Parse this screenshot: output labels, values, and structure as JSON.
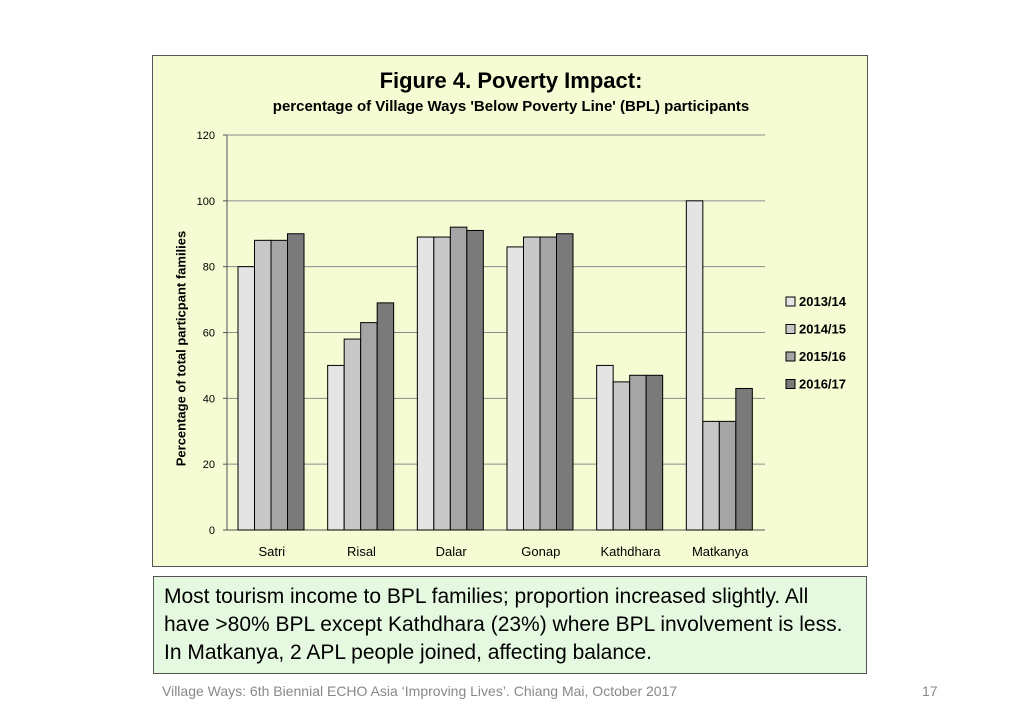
{
  "chart_data": {
    "type": "bar",
    "title": "Figure 4. Poverty Impact:",
    "subtitle": "percentage of Village Ways 'Below Poverty Line' (BPL) participants",
    "xlabel": "",
    "ylabel": "Percentage of total particpant families",
    "ylim": [
      0,
      120
    ],
    "yticks": [
      "0",
      "20",
      "40",
      "60",
      "80",
      "100",
      "120"
    ],
    "grid": true,
    "legend_position": "right",
    "categories": [
      "Satri",
      "Risal",
      "Dalar",
      "Gonap",
      "Kathdhara",
      "Matkanya"
    ],
    "series": [
      {
        "name": "2013/14",
        "color": "#e4e4e4",
        "values": [
          80,
          50,
          89,
          86,
          50,
          100
        ]
      },
      {
        "name": "2014/15",
        "color": "#c8c8c8",
        "values": [
          88,
          58,
          89,
          89,
          45,
          33
        ]
      },
      {
        "name": "2015/16",
        "color": "#a5a5a5",
        "values": [
          88,
          63,
          92,
          89,
          47,
          33
        ]
      },
      {
        "name": "2016/17",
        "color": "#7a7a7a",
        "values": [
          90,
          69,
          91,
          90,
          47,
          43
        ]
      }
    ]
  },
  "note": {
    "lines": [
      "Most tourism income to BPL families; proportion increased slightly. All",
      "have >80% BPL except Kathdhara (23%) where BPL involvement is less.",
      "In Matkanya, 2 APL people joined, affecting balance."
    ]
  },
  "footer": {
    "text": "Village Ways: 6th Biennial ECHO Asia ‘Improving Lives’. Chiang Mai, October 2017",
    "page_number": "17"
  }
}
